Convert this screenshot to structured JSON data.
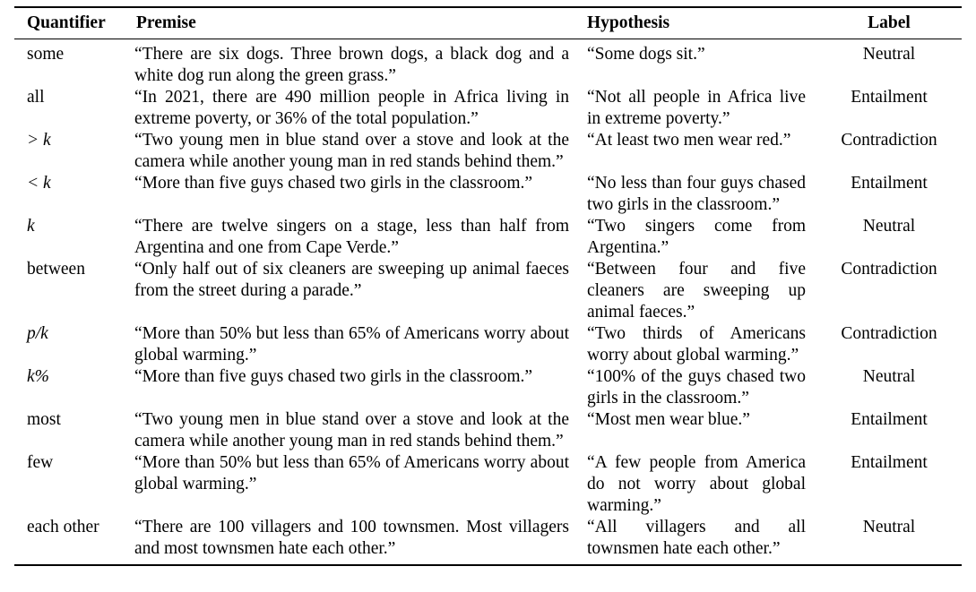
{
  "table": {
    "headers": {
      "quantifier": "Quantifier",
      "premise": "Premise",
      "hypothesis": "Hypothesis",
      "label": "Label"
    },
    "rows": [
      {
        "quantifier": "some",
        "math": false,
        "premise": "“There are six dogs. Three brown dogs, a black dog and a white dog run along the green grass.”",
        "hypothesis": "“Some dogs sit.”",
        "label": "Neutral"
      },
      {
        "quantifier": "all",
        "math": false,
        "premise": "“In 2021, there are 490 million people in Africa living in extreme poverty, or 36% of the total population.”",
        "hypothesis": "“Not all people in Africa live in extreme poverty.”",
        "label": "Entailment"
      },
      {
        "quantifier": "> k",
        "math": true,
        "premise": "“Two young men in blue stand over a stove and look at the camera while another young man in red stands behind them.”",
        "hypothesis": "“At least two men wear red.”",
        "label": "Contradiction"
      },
      {
        "quantifier": "< k",
        "math": true,
        "premise": "“More than five guys chased two girls in the classroom.”",
        "hypothesis": "“No less than four guys chased two girls in the classroom.”",
        "label": "Entailment"
      },
      {
        "quantifier": "k",
        "math": true,
        "premise": "“There are twelve singers on a stage, less than half from Argentina and one from Cape Verde.”",
        "hypothesis": "“Two singers come from Argentina.”",
        "label": "Neutral"
      },
      {
        "quantifier": "between",
        "math": false,
        "premise": "“Only half out of six cleaners are sweeping up animal faeces from the street during a parade.”",
        "hypothesis": "“Between four and five cleaners are sweeping up animal faeces.”",
        "label": "Contradiction"
      },
      {
        "quantifier": "p/k",
        "math": true,
        "premise": "“More than 50% but less than 65% of Americans worry about global warming.”",
        "hypothesis": "“Two thirds of Americans worry about global warming.”",
        "label": "Contradiction"
      },
      {
        "quantifier": "k%",
        "math": true,
        "premise": "“More than five guys chased two girls in the classroom.”",
        "hypothesis": "“100% of the guys chased two girls in the classroom.”",
        "label": "Neutral"
      },
      {
        "quantifier": "most",
        "math": false,
        "premise": "“Two young men in blue stand over a stove and look at the camera while another young man in red stands behind them.”",
        "hypothesis": "“Most men wear blue.”",
        "label": "Entailment"
      },
      {
        "quantifier": "few",
        "math": false,
        "premise": "“More than 50% but less than 65% of Americans worry about global warming.”",
        "hypothesis": "“A few people from America do not worry about global warming.”",
        "label": "Entailment"
      },
      {
        "quantifier": "each other",
        "math": false,
        "premise": "“There are 100 villagers and 100 townsmen. Most villagers and most townsmen hate each other.”",
        "hypothesis": "“All villagers and all townsmen hate each other.”",
        "label": "Neutral"
      }
    ]
  }
}
